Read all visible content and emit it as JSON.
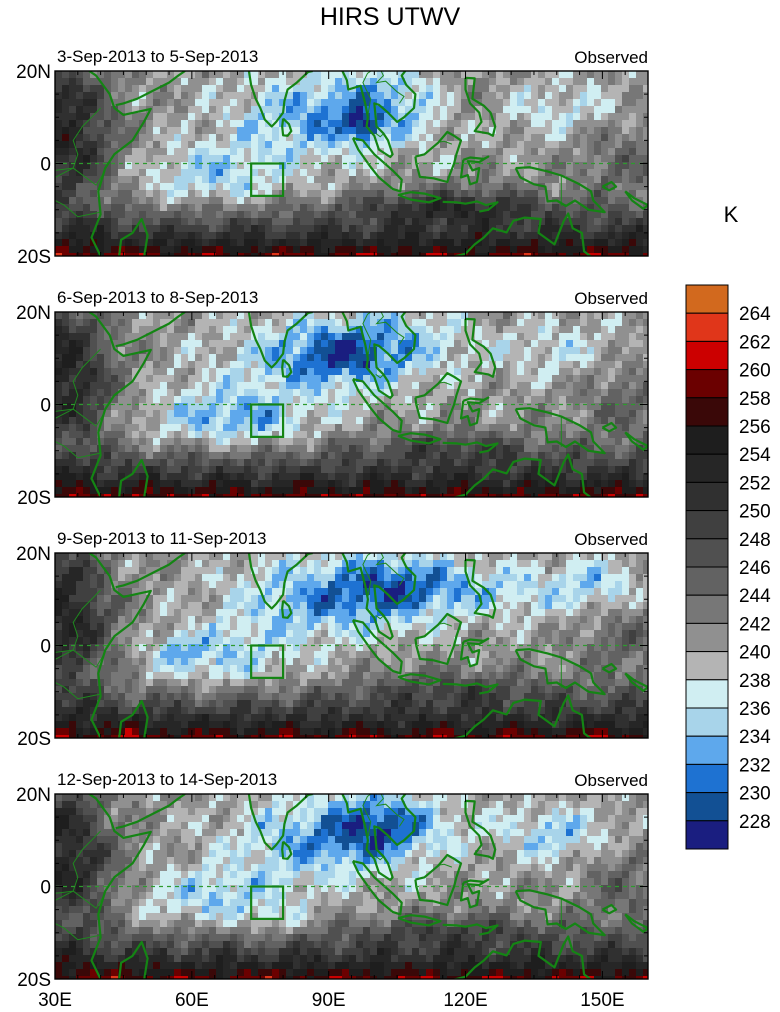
{
  "figure": {
    "title": "HIRS UTWV",
    "units": "K"
  },
  "map_data": {
    "type": "contour-map-panels",
    "region": {
      "lon_range": [
        30,
        160
      ],
      "lat_range": [
        -20,
        20
      ]
    },
    "x_ticks": [
      {
        "value": 30,
        "label": "30E"
      },
      {
        "value": 60,
        "label": "60E"
      },
      {
        "value": 90,
        "label": "90E"
      },
      {
        "value": 120,
        "label": "120E"
      },
      {
        "value": 150,
        "label": "150E"
      }
    ],
    "y_ticks": [
      {
        "value": 20,
        "label": "20N"
      },
      {
        "value": 0,
        "label": "0"
      },
      {
        "value": -20,
        "label": "20S"
      }
    ],
    "box": {
      "lon": [
        73,
        80
      ],
      "lat": [
        -7,
        0
      ]
    },
    "panels": [
      {
        "label": "3-Sep-2013 to 5-Sep-2013",
        "tag": "Observed"
      },
      {
        "label": "6-Sep-2013 to 8-Sep-2013",
        "tag": "Observed"
      },
      {
        "label": "9-Sep-2013 to 11-Sep-2013",
        "tag": "Observed"
      },
      {
        "label": "12-Sep-2013 to 14-Sep-2013",
        "tag": "Observed"
      }
    ]
  },
  "colorbar": {
    "levels": [
      "264",
      "262",
      "260",
      "258",
      "256",
      "254",
      "252",
      "250",
      "248",
      "246",
      "244",
      "242",
      "240",
      "238",
      "236",
      "234",
      "232",
      "230",
      "228"
    ],
    "colors": [
      "#d2691e",
      "#e0361a",
      "#cc0000",
      "#6b0000",
      "#3a0808",
      "#1e1e1e",
      "#262626",
      "#303030",
      "#404040",
      "#505050",
      "#626262",
      "#777777",
      "#909090",
      "#b4b4b4",
      "#d0eef2",
      "#a8d4ea",
      "#5ea8ec",
      "#1e72d2",
      "#125094",
      "#1a1e80"
    ]
  }
}
